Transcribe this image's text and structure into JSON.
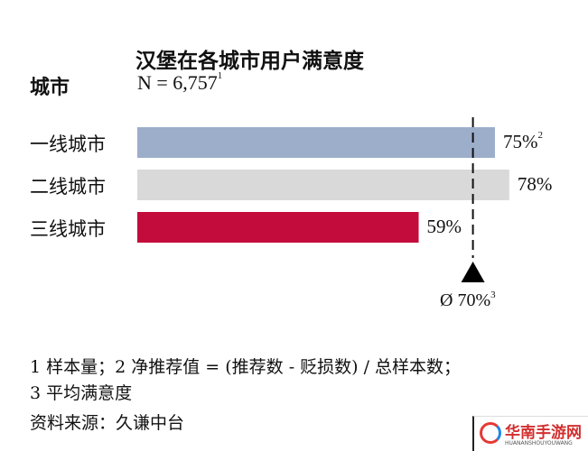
{
  "chart_data": {
    "type": "bar",
    "orientation": "horizontal",
    "title": "汉堡在各城市用户满意度",
    "category_header": "城市",
    "sample_label": "N = 6,757",
    "sample_footnote": "1",
    "categories": [
      "一线城市",
      "二线城市",
      "三线城市"
    ],
    "values": [
      75,
      78,
      59
    ],
    "value_labels": [
      "75%",
      "78%",
      "59%"
    ],
    "value_footnotes": [
      "2",
      "",
      ""
    ],
    "colors": [
      "#9daecb",
      "#d9d9d9",
      "#c40c3c"
    ],
    "unit": "%",
    "average": {
      "value": 70,
      "label": "Ø 70%",
      "footnote": "3"
    },
    "grid": false
  },
  "footnotes": {
    "line1": "1 样本量；2 净推荐值 = (推荐数 - 贬损数) / 总样本数；",
    "line2": "3 平均满意度",
    "source": "资料来源：久谦中台"
  },
  "watermark": {
    "name": "华南手游网",
    "sub": "HUANANSHOUYOUWANG"
  }
}
